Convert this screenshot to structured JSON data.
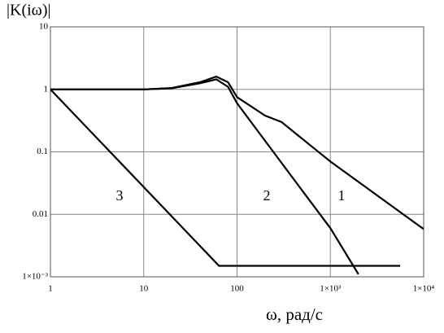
{
  "chart_data": {
    "type": "line",
    "title": "|K(iω)|",
    "x_label": "ω, рад/с",
    "x_log": true,
    "y_log": true,
    "grid": true,
    "xlim": [
      1,
      10000
    ],
    "ylim": [
      0.001,
      10
    ],
    "xticks": [
      1,
      10,
      100,
      {
        "value": 1000,
        "label": "1×10³"
      },
      {
        "value": 10000,
        "label": "1×10⁴"
      }
    ],
    "yticks": [
      {
        "value": 0.001,
        "label": "1×10⁻³"
      },
      0.01,
      0.1,
      1,
      10
    ],
    "series": [
      {
        "name": "1",
        "color": "#000000",
        "x": [
          1,
          10,
          20,
          40,
          60,
          80,
          100,
          200,
          300,
          1000,
          10000
        ],
        "values": [
          1,
          1,
          1.05,
          1.3,
          1.6,
          1.3,
          0.75,
          0.38,
          0.3,
          0.07,
          0.0058
        ]
      },
      {
        "name": "2",
        "color": "#000000",
        "x": [
          1,
          10,
          20,
          40,
          60,
          80,
          100,
          200,
          500,
          1000,
          2000
        ],
        "values": [
          1,
          1,
          1.04,
          1.25,
          1.45,
          1.1,
          0.6,
          0.15,
          0.024,
          0.006,
          0.0011
        ]
      },
      {
        "name": "3",
        "color": "#000000",
        "x": [
          1,
          64,
          5600
        ],
        "values": [
          1,
          0.0015,
          0.0015
        ]
      }
    ]
  }
}
